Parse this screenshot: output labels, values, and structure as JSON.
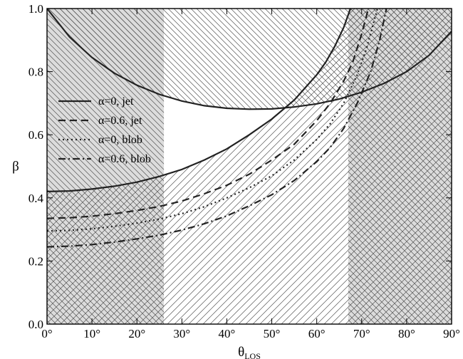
{
  "chart_data": {
    "type": "line",
    "title": "",
    "xlabel": "θ",
    "xlabel_subscript": "LOS",
    "ylabel": "β",
    "xlim": [
      0,
      90
    ],
    "ylim": [
      0,
      1.0
    ],
    "xticks": [
      0,
      10,
      20,
      30,
      40,
      50,
      60,
      70,
      80,
      90
    ],
    "xtick_labels": [
      "0°",
      "10°",
      "20°",
      "30°",
      "40°",
      "50°",
      "60°",
      "70°",
      "80°",
      "90°"
    ],
    "yticks": [
      0.0,
      0.2,
      0.4,
      0.6,
      0.8,
      1.0
    ],
    "ytick_labels": [
      "0.0",
      "0.2",
      "0.4",
      "0.6",
      "0.8",
      "1.0"
    ],
    "grid": false,
    "legend_position": "middle-left",
    "series": [
      {
        "name": "α=0, jet",
        "style": "solid",
        "x": [
          0,
          5,
          10,
          15,
          20,
          25,
          30,
          35,
          40,
          45,
          50,
          55,
          60,
          62,
          64,
          66,
          67.5
        ],
        "y": [
          0.42,
          0.422,
          0.428,
          0.437,
          0.45,
          0.468,
          0.49,
          0.52,
          0.555,
          0.6,
          0.65,
          0.71,
          0.79,
          0.83,
          0.88,
          0.94,
          1.0
        ]
      },
      {
        "name": "α=0.6, jet",
        "style": "dashed",
        "x": [
          0,
          5,
          10,
          15,
          20,
          25,
          30,
          35,
          40,
          45,
          50,
          55,
          60,
          63,
          66,
          68,
          70,
          71.5
        ],
        "y": [
          0.335,
          0.337,
          0.342,
          0.35,
          0.36,
          0.373,
          0.39,
          0.413,
          0.44,
          0.475,
          0.52,
          0.57,
          0.645,
          0.7,
          0.77,
          0.83,
          0.92,
          1.0
        ]
      },
      {
        "name": "α=0, blob",
        "style": "dotted",
        "x": [
          0,
          5,
          10,
          15,
          20,
          25,
          30,
          35,
          40,
          45,
          50,
          55,
          60,
          63,
          66,
          69,
          71,
          73.5
        ],
        "y": [
          0.295,
          0.297,
          0.302,
          0.31,
          0.32,
          0.333,
          0.35,
          0.372,
          0.4,
          0.432,
          0.47,
          0.52,
          0.585,
          0.635,
          0.7,
          0.79,
          0.87,
          1.0
        ]
      },
      {
        "name": "α=0.6, blob",
        "style": "dashdot",
        "x": [
          0,
          5,
          10,
          15,
          20,
          25,
          30,
          35,
          40,
          45,
          50,
          55,
          60,
          63,
          66,
          69,
          72,
          74,
          75.5
        ],
        "y": [
          0.245,
          0.247,
          0.252,
          0.26,
          0.27,
          0.282,
          0.298,
          0.318,
          0.343,
          0.375,
          0.41,
          0.455,
          0.515,
          0.56,
          0.62,
          0.7,
          0.8,
          0.9,
          1.0
        ]
      }
    ],
    "upper_curve": {
      "x": [
        0,
        5,
        10,
        15,
        20,
        25,
        30,
        35,
        40,
        45,
        50,
        55,
        60,
        65,
        70,
        75,
        80,
        85,
        90
      ],
      "y": [
        1.0,
        0.91,
        0.845,
        0.795,
        0.757,
        0.728,
        0.707,
        0.692,
        0.684,
        0.681,
        0.682,
        0.688,
        0.698,
        0.713,
        0.735,
        0.763,
        0.8,
        0.852,
        0.928
      ]
    },
    "shaded_bands": [
      {
        "x": [
          0,
          26
        ],
        "fill": "gray-hatched"
      },
      {
        "x": [
          67,
          90
        ],
        "fill": "gray-hatched"
      }
    ],
    "colors": {
      "band": "#dcdcdc",
      "hatch": "#555555",
      "line": "#222222"
    }
  },
  "legend": {
    "items": [
      {
        "label": "α=0, jet",
        "style": "solid"
      },
      {
        "label": "α=0.6, jet",
        "style": "dashed"
      },
      {
        "label": "α=0, blob",
        "style": "dotted"
      },
      {
        "label": "α=0.6, blob",
        "style": "dashdot"
      }
    ]
  }
}
